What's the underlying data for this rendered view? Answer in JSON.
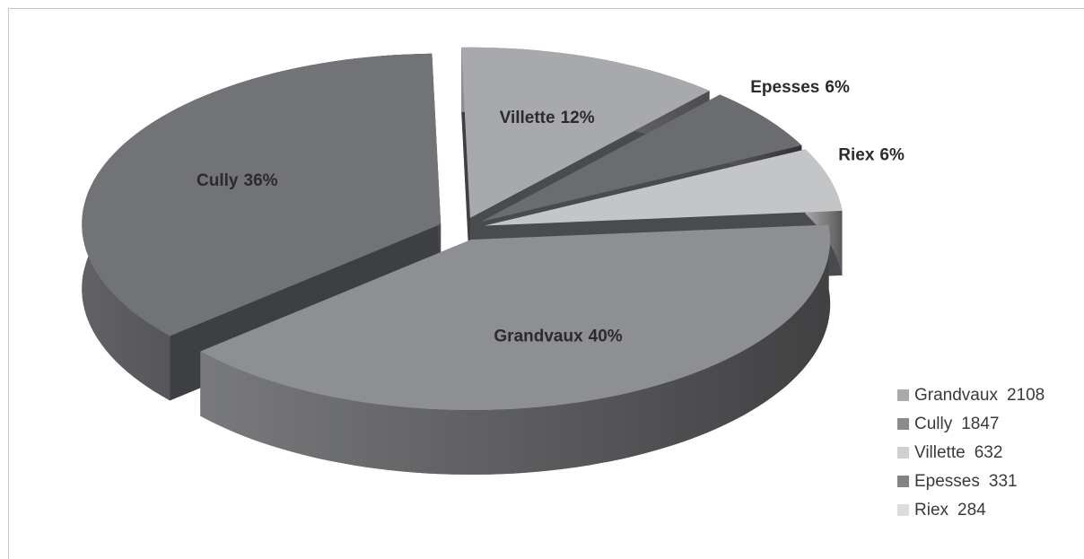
{
  "chart_data": {
    "type": "pie",
    "categories": [
      "Grandvaux",
      "Cully",
      "Villette",
      "Epesses",
      "Riex"
    ],
    "values": [
      40,
      36,
      12,
      6,
      6
    ],
    "value_labels": [
      "40%",
      "36%",
      "12%",
      "6%",
      "6%"
    ],
    "counts": [
      2108,
      1847,
      632,
      331,
      284
    ],
    "colors": [
      "#8e8f92",
      "#727377",
      "#a8a9ac",
      "#6b6c70",
      "#c4c5c7"
    ],
    "legend_colors": [
      "#a9a9ab",
      "#8b8b8d",
      "#cfcfd0",
      "#838385",
      "#dcdcdd"
    ],
    "legend": "bottom-right"
  }
}
